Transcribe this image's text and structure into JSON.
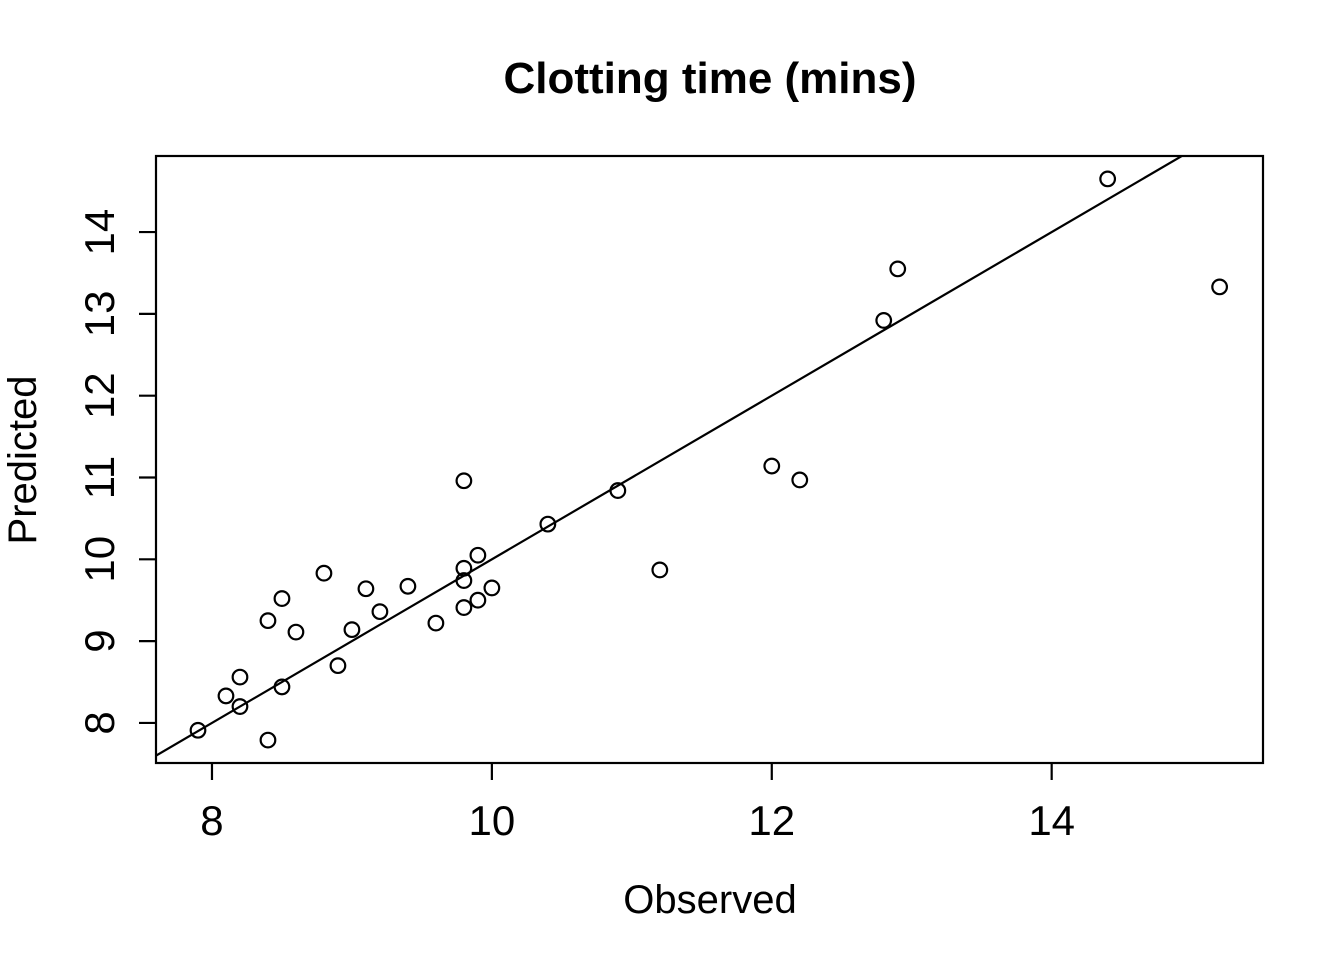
{
  "figure": {
    "background_color": "#ffffff",
    "foreground_color": "#000000"
  },
  "chart_data": {
    "type": "scatter",
    "title": "Clotting time (mins)",
    "xlabel": "Observed",
    "ylabel": "Predicted",
    "xlim": [
      7.6,
      15.51
    ],
    "ylim": [
      7.51,
      14.93
    ],
    "x_ticks": [
      8,
      10,
      12,
      14
    ],
    "y_ticks": [
      8,
      9,
      10,
      11,
      12,
      13,
      14
    ],
    "grid": false,
    "legend": null,
    "marker": "open-circle",
    "marker_color": "#000000",
    "line": {
      "type": "identity",
      "intercept": 0,
      "slope": 1,
      "color": "#000000"
    },
    "points": [
      [
        7.9,
        7.91
      ],
      [
        8.1,
        8.33
      ],
      [
        8.2,
        8.56
      ],
      [
        8.2,
        8.2
      ],
      [
        8.4,
        7.79
      ],
      [
        8.4,
        9.25
      ],
      [
        8.5,
        9.52
      ],
      [
        8.5,
        8.44
      ],
      [
        8.6,
        9.11
      ],
      [
        8.8,
        9.83
      ],
      [
        8.9,
        8.7
      ],
      [
        9.0,
        9.14
      ],
      [
        9.1,
        9.64
      ],
      [
        9.2,
        9.36
      ],
      [
        9.4,
        9.67
      ],
      [
        9.6,
        9.22
      ],
      [
        9.8,
        10.96
      ],
      [
        9.8,
        9.89
      ],
      [
        9.8,
        9.74
      ],
      [
        9.8,
        9.41
      ],
      [
        9.9,
        10.05
      ],
      [
        9.9,
        9.5
      ],
      [
        10.0,
        9.65
      ],
      [
        10.4,
        10.43
      ],
      [
        10.9,
        10.84
      ],
      [
        11.2,
        9.87
      ],
      [
        12.0,
        11.14
      ],
      [
        12.2,
        10.97
      ],
      [
        12.8,
        12.92
      ],
      [
        12.9,
        13.55
      ],
      [
        14.4,
        14.65
      ],
      [
        15.2,
        13.33
      ]
    ]
  }
}
